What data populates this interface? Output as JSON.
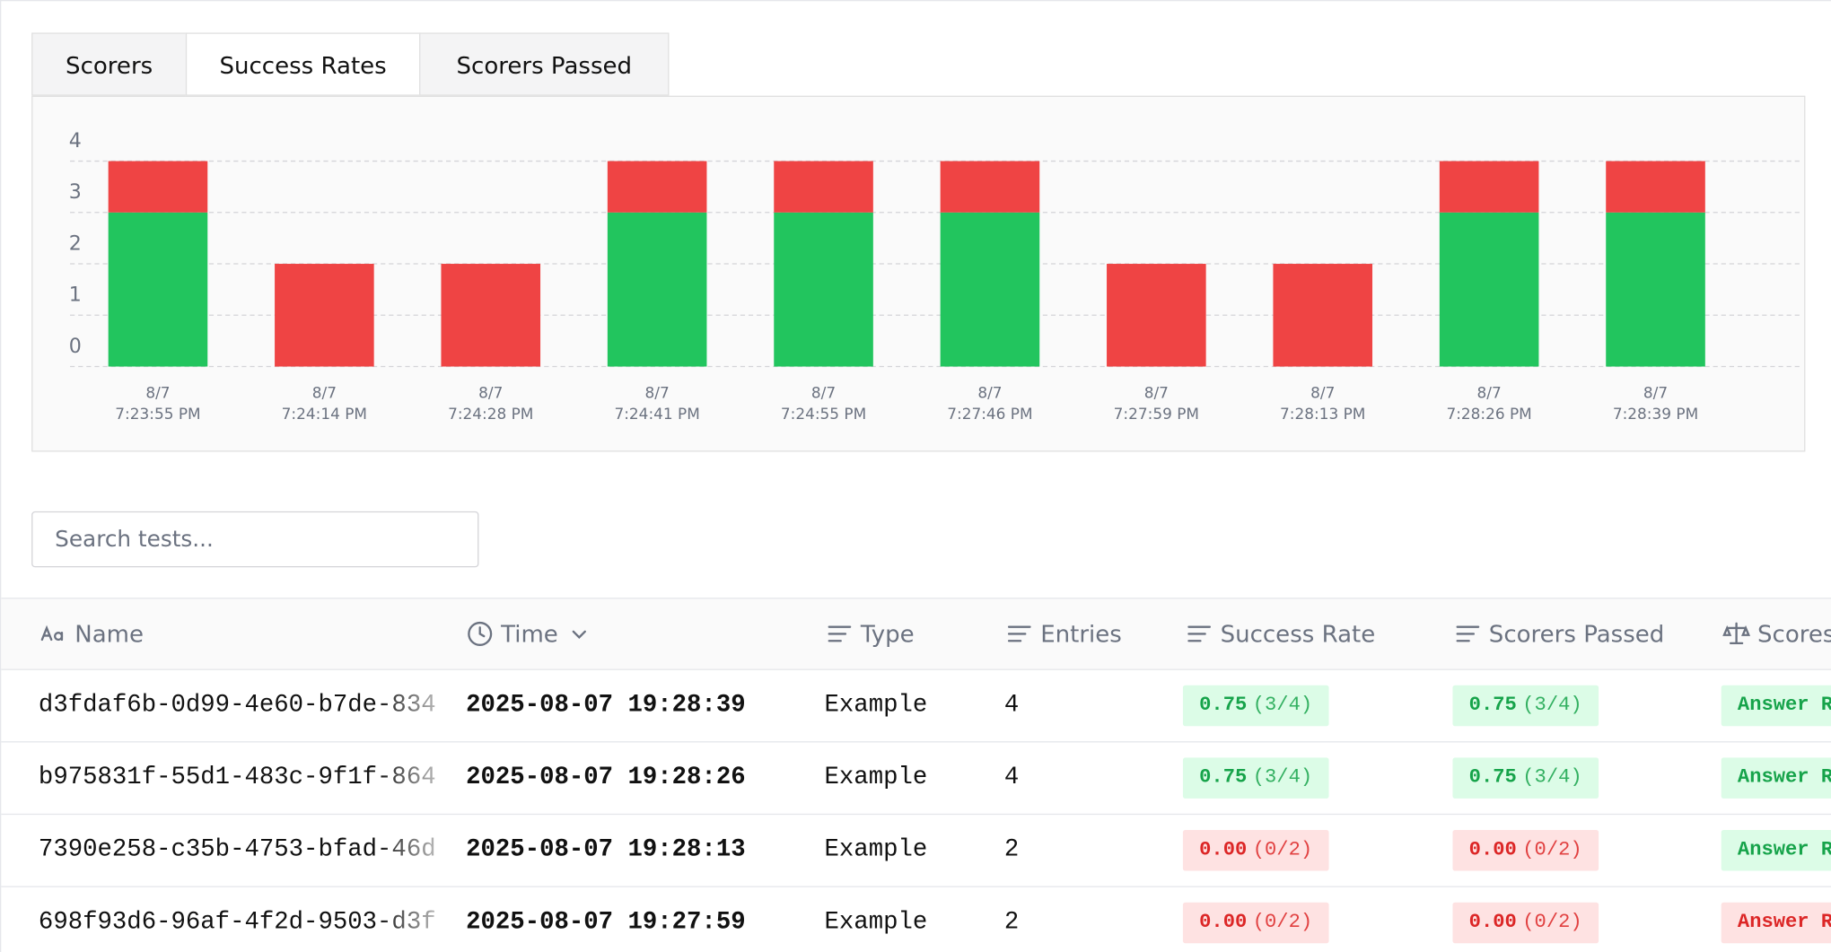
{
  "tabs": [
    "Scorers",
    "Success Rates",
    "Scorers Passed"
  ],
  "active_tab": 1,
  "chart_data": {
    "type": "bar",
    "stacked": true,
    "categories": [
      [
        "8/7",
        "7:23:55 PM"
      ],
      [
        "8/7",
        "7:24:14 PM"
      ],
      [
        "8/7",
        "7:24:28 PM"
      ],
      [
        "8/7",
        "7:24:41 PM"
      ],
      [
        "8/7",
        "7:24:55 PM"
      ],
      [
        "8/7",
        "7:27:46 PM"
      ],
      [
        "8/7",
        "7:27:59 PM"
      ],
      [
        "8/7",
        "7:28:13 PM"
      ],
      [
        "8/7",
        "7:28:26 PM"
      ],
      [
        "8/7",
        "7:28:39 PM"
      ]
    ],
    "series": [
      {
        "color": "#22c55e",
        "values": [
          3,
          0,
          0,
          3,
          3,
          3,
          0,
          0,
          3,
          3
        ]
      },
      {
        "color": "#ef4444",
        "values": [
          1,
          2,
          2,
          1,
          1,
          1,
          2,
          2,
          1,
          1
        ]
      }
    ],
    "ylim": [
      0,
      4
    ],
    "yticks": [
      0,
      1,
      2,
      3,
      4
    ],
    "grid": true
  },
  "search": {
    "placeholder": "Search tests..."
  },
  "table": {
    "columns": [
      "Name",
      "Time",
      "Type",
      "Entries",
      "Success Rate",
      "Scorers Passed",
      "Scores"
    ],
    "rows": [
      [
        "d3fdaf6b-0d99-4e60-b7de-834",
        "2025-08-07 19:28:39",
        "Example",
        4,
        {
          "score": "0.75",
          "ratio": "(3/4)",
          "tone": "green"
        },
        {
          "score": "0.75",
          "ratio": "(3/4)",
          "tone": "green"
        },
        {
          "text": "Answer R",
          "tone": "green"
        }
      ],
      [
        "b975831f-55d1-483c-9f1f-864",
        "2025-08-07 19:28:26",
        "Example",
        4,
        {
          "score": "0.75",
          "ratio": "(3/4)",
          "tone": "green"
        },
        {
          "score": "0.75",
          "ratio": "(3/4)",
          "tone": "green"
        },
        {
          "text": "Answer R",
          "tone": "green"
        }
      ],
      [
        "7390e258-c35b-4753-bfad-46d",
        "2025-08-07 19:28:13",
        "Example",
        2,
        {
          "score": "0.00",
          "ratio": "(0/2)",
          "tone": "red"
        },
        {
          "score": "0.00",
          "ratio": "(0/2)",
          "tone": "red"
        },
        {
          "text": "Answer R",
          "tone": "green"
        }
      ],
      [
        "698f93d6-96af-4f2d-9503-d3f",
        "2025-08-07 19:27:59",
        "Example",
        2,
        {
          "score": "0.00",
          "ratio": "(0/2)",
          "tone": "red"
        },
        {
          "score": "0.00",
          "ratio": "(0/2)",
          "tone": "red"
        },
        {
          "text": "Answer R",
          "tone": "red"
        }
      ]
    ]
  }
}
